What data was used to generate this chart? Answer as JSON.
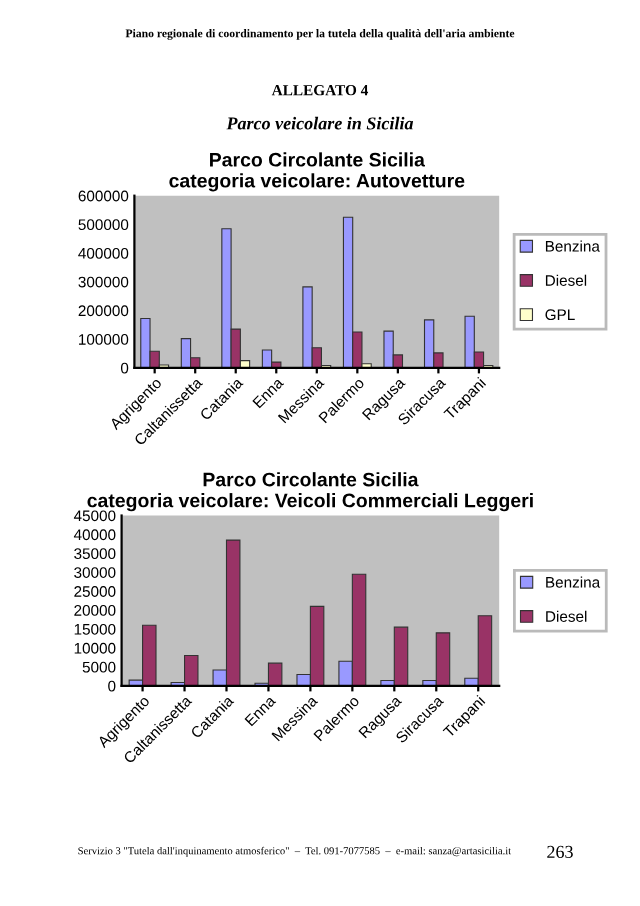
{
  "chart_data": [
    {
      "type": "bar",
      "title": "Parco Circolante Sicilia\ncategoria veicolare: Autovetture",
      "annotations": [
        "Piano regionale di coordinamento per la tutela della qualità dell'aria ambiente",
        "ALLEGATO 4",
        "Parco veicolare in Sicilia"
      ],
      "categories": [
        "Agrigento",
        "Caltanissetta",
        "Catania",
        "Enna",
        "Messina",
        "Palermo",
        "Ragusa",
        "Siracusa",
        "Trapani"
      ],
      "series": [
        {
          "name": "Benzina",
          "color": "#9999ff",
          "values": [
            172000,
            102000,
            485000,
            62000,
            282000,
            525000,
            128000,
            167000,
            180000
          ]
        },
        {
          "name": "Diesel",
          "color": "#993366",
          "values": [
            58000,
            35000,
            135000,
            20000,
            70000,
            125000,
            45000,
            52000,
            55000
          ]
        },
        {
          "name": "GPL",
          "color": "#ffffcc",
          "values": [
            10000,
            null,
            25000,
            null,
            8000,
            14000,
            null,
            null,
            8000
          ]
        }
      ],
      "ylim": [
        0,
        600000
      ],
      "yticks": [
        0,
        100000,
        200000,
        300000,
        400000,
        500000,
        600000
      ],
      "grid": false,
      "legend": "right"
    },
    {
      "type": "bar",
      "title": "Parco Circolante Sicilia\ncategoria veicolare: Veicoli Commerciali Leggeri",
      "annotations": [
        "Servizio 3 \"Tutela dall'inquinamento atmosferico\"  –  Tel. 091-7077585  –  e-mail: sanza@artasicilia.it",
        "263"
      ],
      "categories": [
        "Agrigento",
        "Caltanissetta",
        "Catania",
        "Enna",
        "Messina",
        "Palermo",
        "Ragusa",
        "Siracusa",
        "Trapani"
      ],
      "series": [
        {
          "name": "Benzina",
          "color": "#9999ff",
          "values": [
            1500,
            900,
            4200,
            700,
            3000,
            6500,
            1400,
            1400,
            2000
          ]
        },
        {
          "name": "Diesel",
          "color": "#993366",
          "values": [
            16000,
            8000,
            38500,
            6000,
            21000,
            29500,
            15500,
            14000,
            18500
          ]
        }
      ],
      "ylim": [
        0,
        45000
      ],
      "yticks": [
        0,
        5000,
        10000,
        15000,
        20000,
        25000,
        30000,
        35000,
        40000,
        45000
      ],
      "grid": false,
      "legend": "right"
    }
  ]
}
